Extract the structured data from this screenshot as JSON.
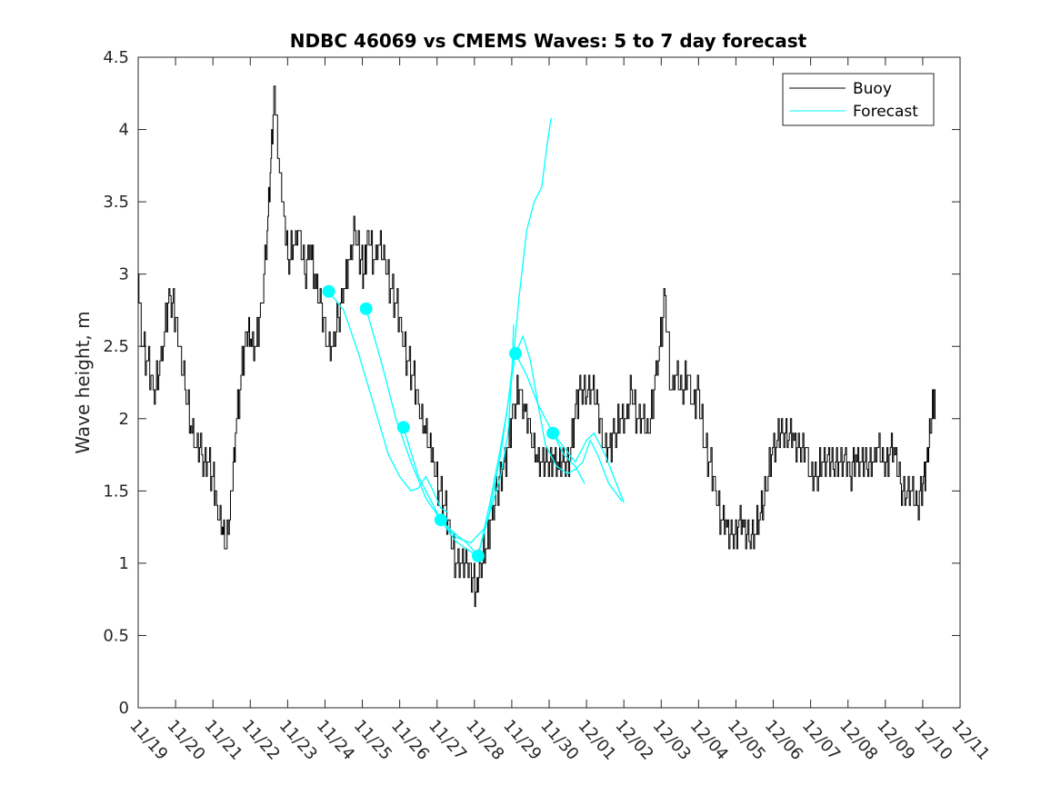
{
  "chart_data": {
    "type": "line",
    "title": "NDBC 46069 vs CMEMS Waves: 5 to 7 day forecast",
    "xlabel": "",
    "ylabel": "Wave height, m",
    "xlim_day": [
      0,
      22
    ],
    "ylim": [
      0,
      4.5
    ],
    "x_tick_labels": [
      "11/19",
      "11/20",
      "11/21",
      "11/22",
      "11/23",
      "11/24",
      "11/25",
      "11/26",
      "11/27",
      "11/28",
      "11/29",
      "11/30",
      "12/01",
      "12/02",
      "12/03",
      "12/04",
      "12/05",
      "12/06",
      "12/07",
      "12/08",
      "12/09",
      "12/10",
      "12/11"
    ],
    "y_ticks": [
      0,
      0.5,
      1,
      1.5,
      2,
      2.5,
      3,
      3.5,
      4,
      4.5
    ],
    "y_tick_labels": [
      "0",
      "0.5",
      "1",
      "1.5",
      "2",
      "2.5",
      "3",
      "3.5",
      "4",
      "4.5"
    ],
    "grid": false,
    "legend_position": "top-right",
    "legend": [
      {
        "label": "Buoy",
        "color": "#000000"
      },
      {
        "label": "Forecast",
        "color": "#00ffff"
      }
    ],
    "series": [
      {
        "name": "Buoy",
        "color": "#000000",
        "points": [
          [
            0.0,
            3.0
          ],
          [
            0.1,
            2.5
          ],
          [
            0.25,
            2.4
          ],
          [
            0.4,
            2.2
          ],
          [
            0.55,
            2.3
          ],
          [
            0.7,
            2.6
          ],
          [
            0.85,
            2.85
          ],
          [
            1.0,
            2.7
          ],
          [
            1.1,
            2.5
          ],
          [
            1.25,
            2.2
          ],
          [
            1.4,
            1.95
          ],
          [
            1.55,
            1.8
          ],
          [
            1.7,
            1.75
          ],
          [
            1.85,
            1.7
          ],
          [
            2.0,
            1.6
          ],
          [
            2.1,
            1.4
          ],
          [
            2.25,
            1.25
          ],
          [
            2.35,
            1.1
          ],
          [
            2.5,
            1.5
          ],
          [
            2.6,
            1.9
          ],
          [
            2.75,
            2.3
          ],
          [
            2.9,
            2.6
          ],
          [
            3.0,
            2.55
          ],
          [
            3.15,
            2.5
          ],
          [
            3.3,
            2.8
          ],
          [
            3.45,
            3.3
          ],
          [
            3.55,
            3.8
          ],
          [
            3.65,
            4.3
          ],
          [
            3.75,
            3.8
          ],
          [
            3.9,
            3.4
          ],
          [
            4.0,
            3.1
          ],
          [
            4.15,
            3.2
          ],
          [
            4.3,
            3.3
          ],
          [
            4.45,
            3.0
          ],
          [
            4.6,
            3.2
          ],
          [
            4.75,
            2.9
          ],
          [
            4.9,
            2.8
          ],
          [
            5.05,
            2.5
          ],
          [
            5.2,
            2.5
          ],
          [
            5.35,
            2.7
          ],
          [
            5.5,
            2.9
          ],
          [
            5.65,
            3.1
          ],
          [
            5.8,
            3.3
          ],
          [
            5.95,
            3.1
          ],
          [
            6.05,
            3.0
          ],
          [
            6.15,
            3.3
          ],
          [
            6.3,
            3.1
          ],
          [
            6.45,
            3.2
          ],
          [
            6.6,
            3.1
          ],
          [
            6.75,
            2.9
          ],
          [
            6.9,
            2.8
          ],
          [
            7.05,
            2.6
          ],
          [
            7.2,
            2.4
          ],
          [
            7.35,
            2.3
          ],
          [
            7.5,
            2.1
          ],
          [
            7.65,
            1.95
          ],
          [
            7.8,
            1.8
          ],
          [
            7.9,
            1.7
          ],
          [
            8.05,
            1.5
          ],
          [
            8.2,
            1.4
          ],
          [
            8.35,
            1.2
          ],
          [
            8.5,
            1.0
          ],
          [
            8.65,
            1.0
          ],
          [
            8.8,
            1.0
          ],
          [
            8.95,
            0.9
          ],
          [
            9.05,
            0.8
          ],
          [
            9.15,
            1.0
          ],
          [
            9.3,
            1.1
          ],
          [
            9.45,
            1.3
          ],
          [
            9.6,
            1.5
          ],
          [
            9.75,
            1.65
          ],
          [
            9.9,
            1.8
          ],
          [
            10.05,
            2.1
          ],
          [
            10.2,
            2.2
          ],
          [
            10.35,
            2.05
          ],
          [
            10.5,
            1.9
          ],
          [
            10.65,
            1.75
          ],
          [
            10.8,
            1.7
          ],
          [
            10.95,
            1.7
          ],
          [
            11.1,
            1.75
          ],
          [
            11.25,
            1.65
          ],
          [
            11.4,
            1.7
          ],
          [
            11.55,
            1.7
          ],
          [
            11.7,
            2.1
          ],
          [
            11.85,
            2.2
          ],
          [
            12.0,
            2.15
          ],
          [
            12.15,
            2.2
          ],
          [
            12.3,
            2.1
          ],
          [
            12.45,
            1.8
          ],
          [
            12.6,
            1.8
          ],
          [
            12.75,
            1.9
          ],
          [
            12.9,
            2.0
          ],
          [
            13.05,
            2.0
          ],
          [
            13.2,
            2.2
          ],
          [
            13.35,
            2.0
          ],
          [
            13.5,
            2.0
          ],
          [
            13.65,
            1.9
          ],
          [
            13.8,
            2.2
          ],
          [
            13.95,
            2.5
          ],
          [
            14.1,
            2.85
          ],
          [
            14.25,
            2.2
          ],
          [
            14.4,
            2.3
          ],
          [
            14.55,
            2.2
          ],
          [
            14.7,
            2.3
          ],
          [
            14.85,
            2.1
          ],
          [
            15.0,
            2.2
          ],
          [
            15.15,
            1.8
          ],
          [
            15.3,
            1.7
          ],
          [
            15.45,
            1.5
          ],
          [
            15.6,
            1.3
          ],
          [
            15.75,
            1.25
          ],
          [
            15.9,
            1.2
          ],
          [
            16.05,
            1.25
          ],
          [
            16.2,
            1.25
          ],
          [
            16.35,
            1.15
          ],
          [
            16.5,
            1.2
          ],
          [
            16.65,
            1.35
          ],
          [
            16.8,
            1.5
          ],
          [
            16.95,
            1.75
          ],
          [
            17.1,
            1.85
          ],
          [
            17.25,
            1.9
          ],
          [
            17.4,
            1.85
          ],
          [
            17.55,
            1.85
          ],
          [
            17.7,
            1.8
          ],
          [
            17.85,
            1.8
          ],
          [
            18.0,
            1.6
          ],
          [
            18.15,
            1.6
          ],
          [
            18.3,
            1.7
          ],
          [
            18.45,
            1.75
          ],
          [
            18.6,
            1.65
          ],
          [
            18.75,
            1.7
          ],
          [
            18.9,
            1.75
          ],
          [
            19.05,
            1.6
          ],
          [
            19.2,
            1.75
          ],
          [
            19.35,
            1.7
          ],
          [
            19.5,
            1.65
          ],
          [
            19.65,
            1.7
          ],
          [
            19.8,
            1.8
          ],
          [
            19.95,
            1.7
          ],
          [
            20.1,
            1.75
          ],
          [
            20.25,
            1.75
          ],
          [
            20.4,
            1.55
          ],
          [
            20.55,
            1.45
          ],
          [
            20.7,
            1.5
          ],
          [
            20.85,
            1.4
          ],
          [
            21.0,
            1.55
          ],
          [
            21.1,
            1.7
          ],
          [
            21.2,
            1.9
          ],
          [
            21.3,
            2.2
          ],
          [
            21.35,
            2.0
          ]
        ]
      },
      {
        "name": "Forecast",
        "color": "#00ffff",
        "points": [
          [
            5.1,
            2.88
          ],
          [
            5.5,
            2.75
          ],
          [
            5.9,
            2.45
          ],
          [
            6.3,
            2.1
          ],
          [
            6.7,
            1.75
          ],
          [
            7.0,
            1.6
          ],
          [
            7.3,
            1.5
          ],
          [
            7.5,
            1.52
          ],
          [
            7.7,
            1.6
          ],
          [
            7.9,
            1.5
          ],
          [
            8.1,
            1.38
          ],
          [
            8.3,
            1.35
          ]
        ]
      },
      {
        "name": "",
        "color": "#00ffff",
        "points": [
          [
            6.1,
            2.76
          ],
          [
            6.5,
            2.4
          ],
          [
            6.9,
            2.0
          ],
          [
            7.3,
            1.7
          ],
          [
            7.7,
            1.45
          ],
          [
            8.1,
            1.3
          ],
          [
            8.5,
            1.18
          ],
          [
            8.9,
            1.14
          ],
          [
            9.3,
            1.25
          ],
          [
            9.7,
            1.6
          ],
          [
            9.9,
            1.9
          ],
          [
            10.0,
            2.3
          ],
          [
            10.05,
            2.65
          ]
        ]
      },
      {
        "name": "",
        "color": "#00ffff",
        "points": [
          [
            7.1,
            1.94
          ],
          [
            7.5,
            1.6
          ],
          [
            7.9,
            1.4
          ],
          [
            8.1,
            1.3
          ],
          [
            8.5,
            1.15
          ],
          [
            8.9,
            1.08
          ],
          [
            9.1,
            1.05
          ],
          [
            9.4,
            1.35
          ],
          [
            9.7,
            1.75
          ],
          [
            9.95,
            2.2
          ],
          [
            10.1,
            2.45
          ],
          [
            10.3,
            2.57
          ],
          [
            10.5,
            2.4
          ],
          [
            10.7,
            2.1
          ],
          [
            10.9,
            1.82
          ],
          [
            11.2,
            1.67
          ],
          [
            11.5,
            1.62
          ],
          [
            11.7,
            1.65
          ],
          [
            11.9,
            1.7
          ],
          [
            12.1,
            1.85
          ],
          [
            12.3,
            1.75
          ],
          [
            12.6,
            1.55
          ],
          [
            12.95,
            1.43
          ]
        ]
      },
      {
        "name": "",
        "color": "#00ffff",
        "points": [
          [
            8.1,
            1.3
          ],
          [
            8.5,
            1.2
          ],
          [
            8.8,
            1.14
          ],
          [
            9.1,
            1.05
          ],
          [
            9.4,
            1.4
          ],
          [
            9.7,
            1.8
          ],
          [
            9.9,
            2.1
          ],
          [
            10.05,
            2.45
          ],
          [
            10.2,
            2.85
          ],
          [
            10.4,
            3.3
          ],
          [
            10.6,
            3.5
          ],
          [
            10.8,
            3.6
          ],
          [
            10.95,
            3.9
          ],
          [
            11.05,
            4.08
          ]
        ]
      },
      {
        "name": "",
        "color": "#00ffff",
        "points": [
          [
            10.1,
            2.45
          ],
          [
            10.4,
            2.3
          ],
          [
            10.7,
            2.1
          ],
          [
            11.1,
            1.9
          ],
          [
            11.4,
            1.75
          ],
          [
            11.7,
            1.67
          ],
          [
            11.95,
            1.55
          ]
        ]
      },
      {
        "name": "",
        "color": "#00ffff",
        "points": [
          [
            11.1,
            1.9
          ],
          [
            11.4,
            1.8
          ],
          [
            11.7,
            1.7
          ],
          [
            12.0,
            1.85
          ],
          [
            12.2,
            1.9
          ],
          [
            12.5,
            1.75
          ],
          [
            12.8,
            1.55
          ],
          [
            13.0,
            1.42
          ]
        ]
      }
    ],
    "markers": {
      "color": "#00ffff",
      "points": [
        [
          5.1,
          2.88
        ],
        [
          6.1,
          2.76
        ],
        [
          7.1,
          1.94
        ],
        [
          8.1,
          1.3
        ],
        [
          9.1,
          1.05
        ],
        [
          10.1,
          2.45
        ],
        [
          11.1,
          1.9
        ]
      ]
    }
  }
}
